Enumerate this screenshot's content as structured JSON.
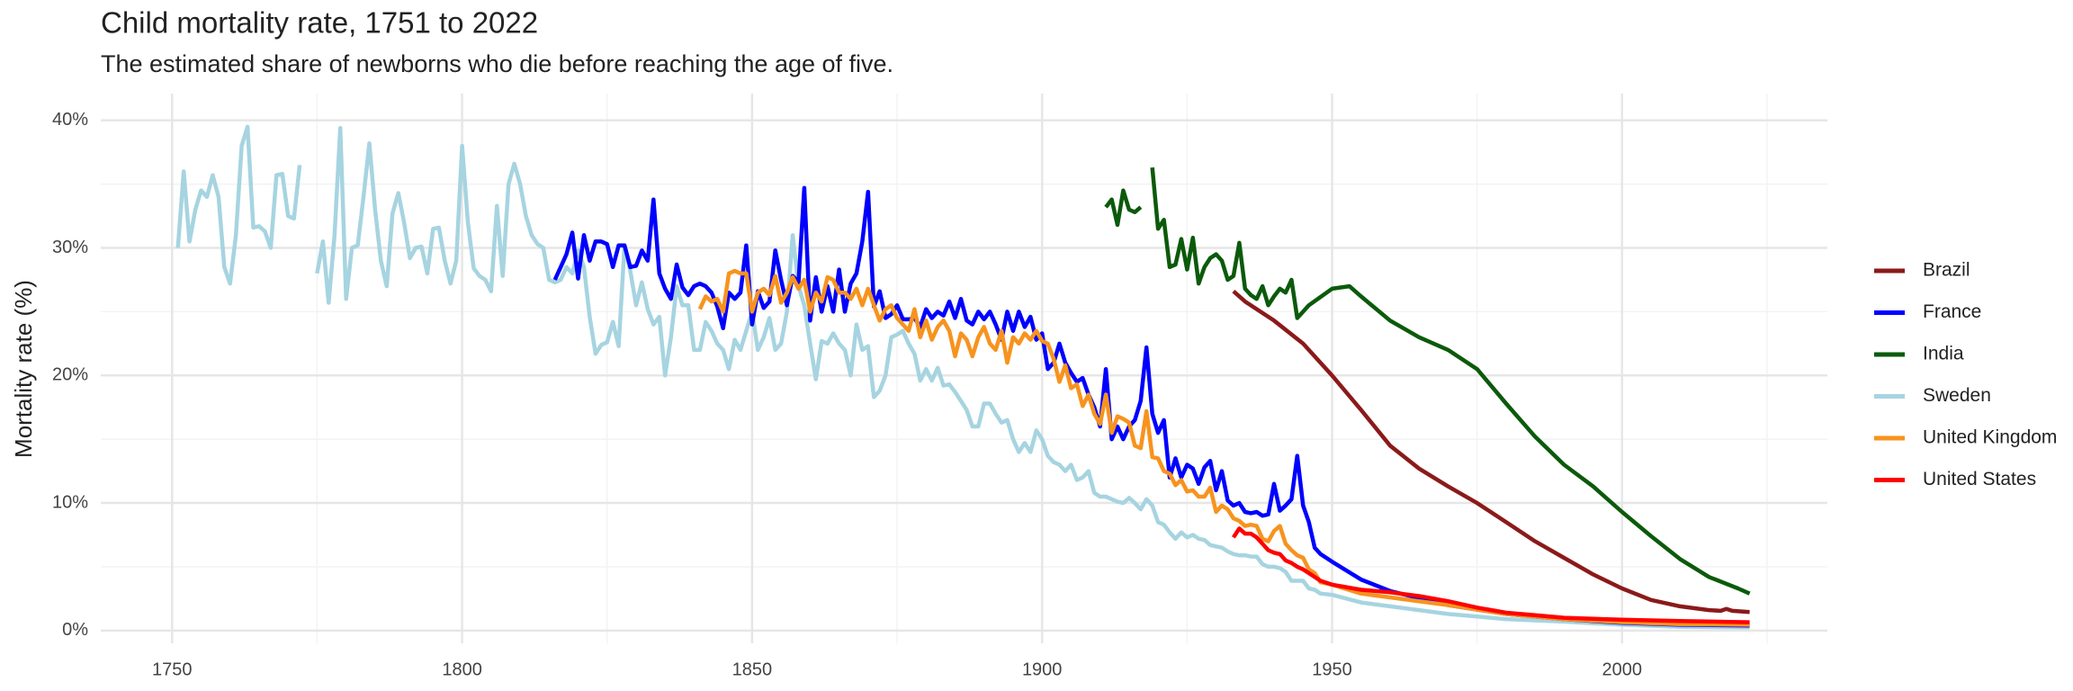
{
  "chart_data": {
    "type": "line",
    "title": "Child mortality rate, 1751 to 2022",
    "subtitle": "The estimated share of newborns who die before reaching the age of five.",
    "y_label": "Mortality rate (%)",
    "xlim": [
      1737.7,
      2035.4
    ],
    "ylim": [
      -1,
      42.1
    ],
    "xticks": [
      1750,
      1800,
      1850,
      1900,
      1950,
      2000
    ],
    "x_minor_ticks": [
      1775,
      1825,
      1875,
      1925,
      1975,
      2025
    ],
    "yticks": [
      {
        "value": 0,
        "label": "0%"
      },
      {
        "value": 10,
        "label": "10%"
      },
      {
        "value": 20,
        "label": "20%"
      },
      {
        "value": 30,
        "label": "30%"
      },
      {
        "value": 40,
        "label": "40%"
      }
    ],
    "y_minor_ticks": [
      5,
      15,
      25,
      35
    ],
    "grid": true,
    "legend": "right",
    "series": [
      {
        "name": "Brazil",
        "color": "#8b1a1a",
        "x": [
          1933,
          1935,
          1940,
          1945,
          1950,
          1955,
          1960,
          1965,
          1970,
          1975,
          1980,
          1985,
          1990,
          1995,
          2000,
          2005,
          2010,
          2015,
          2017,
          2018,
          2019,
          2022
        ],
        "values": [
          26.6,
          25.8,
          24.3,
          22.5,
          20,
          17.3,
          14.5,
          12.7,
          11.3,
          10,
          8.5,
          7,
          5.7,
          4.4,
          3.3,
          2.4,
          1.9,
          1.6,
          1.55,
          1.7,
          1.55,
          1.45
        ]
      },
      {
        "name": "France",
        "color": "#0000ff",
        "x": [
          1816,
          1817,
          1818,
          1819,
          1820,
          1821,
          1822,
          1823,
          1824,
          1825,
          1826,
          1827,
          1828,
          1829,
          1830,
          1831,
          1832,
          1833,
          1834,
          1835,
          1836,
          1837,
          1838,
          1839,
          1840,
          1841,
          1842,
          1843,
          1844,
          1845,
          1846,
          1847,
          1848,
          1849,
          1850,
          1851,
          1852,
          1853,
          1854,
          1855,
          1856,
          1857,
          1858,
          1859,
          1860,
          1861,
          1862,
          1863,
          1864,
          1865,
          1866,
          1867,
          1868,
          1869,
          1870,
          1871,
          1872,
          1873,
          1874,
          1875,
          1876,
          1877,
          1878,
          1879,
          1880,
          1881,
          1882,
          1883,
          1884,
          1885,
          1886,
          1887,
          1888,
          1889,
          1890,
          1891,
          1892,
          1893,
          1894,
          1895,
          1896,
          1897,
          1898,
          1899,
          1900,
          1901,
          1902,
          1903,
          1904,
          1905,
          1906,
          1907,
          1908,
          1909,
          1910,
          1911,
          1912,
          1913,
          1914,
          1915,
          1916,
          1917,
          1918,
          1919,
          1920,
          1921,
          1922,
          1923,
          1924,
          1925,
          1926,
          1927,
          1928,
          1929,
          1930,
          1931,
          1932,
          1933,
          1934,
          1935,
          1936,
          1937,
          1938,
          1939,
          1940,
          1941,
          1942,
          1943,
          1944,
          1945,
          1946,
          1947,
          1948,
          1950,
          1955,
          1960,
          1970,
          1980,
          1990,
          2000,
          2010,
          2022
        ],
        "values": [
          27.5,
          28.5,
          29.5,
          31.2,
          27.6,
          31,
          29,
          30.5,
          30.5,
          30.3,
          28.5,
          30.2,
          30.2,
          28.5,
          28.6,
          29.8,
          29,
          33.8,
          28,
          26.8,
          26,
          28.7,
          26.9,
          26.3,
          27,
          27.2,
          27,
          26.5,
          25.4,
          23.7,
          26.5,
          26,
          26.5,
          30.2,
          24,
          26.6,
          25.3,
          25.8,
          29.8,
          27.5,
          25.5,
          27.8,
          27.3,
          34.7,
          24.3,
          27.7,
          25,
          27,
          25,
          28.3,
          25,
          27.2,
          28,
          30.5,
          34.4,
          25.4,
          26.6,
          24.5,
          24.8,
          25.5,
          24.4,
          24.4,
          24.5,
          23.8,
          25.2,
          24.5,
          25,
          24.7,
          25.8,
          24.5,
          26,
          24.3,
          24,
          25,
          24.4,
          25,
          24,
          22.8,
          25,
          23.5,
          25,
          23.8,
          24.6,
          22.8,
          23.3,
          20.5,
          21,
          22.5,
          21,
          20.2,
          19.5,
          19.8,
          18.5,
          17.5,
          16,
          20.5,
          15,
          16,
          15,
          16,
          16.5,
          18,
          22.2,
          17,
          15.5,
          16.5,
          12,
          13.5,
          12,
          13,
          12.7,
          11.5,
          12.8,
          13.3,
          11,
          12.5,
          10.2,
          9.8,
          10,
          9.3,
          9.2,
          9.3,
          9,
          9.1,
          11.5,
          9.4,
          9.8,
          10.3,
          13.7,
          9.8,
          8.5,
          6.5,
          6,
          5.4,
          4,
          3.1,
          2,
          1.3,
          0.9,
          0.6,
          0.45,
          0.4
        ]
      },
      {
        "name": "India",
        "color": "#0b5a0b",
        "x": [
          1911,
          1912,
          1913,
          1914,
          1915,
          1916,
          1917,
          1918,
          1919,
          1920,
          1921,
          1922,
          1923,
          1924,
          1925,
          1926,
          1927,
          1928,
          1929,
          1930,
          1931,
          1932,
          1933,
          1934,
          1935,
          1936,
          1937,
          1938,
          1939,
          1940,
          1941,
          1942,
          1943,
          1944,
          1945,
          1946,
          1950,
          1953,
          1955,
          1960,
          1965,
          1970,
          1975,
          1980,
          1985,
          1990,
          1995,
          2000,
          2005,
          2010,
          2015,
          2020,
          2022
        ],
        "values": [
          33.2,
          33.8,
          31.8,
          34.5,
          33,
          32.8,
          33.2,
          null,
          36.3,
          31.5,
          32.2,
          28.5,
          28.7,
          30.7,
          28.3,
          30.8,
          27.2,
          28.5,
          29.2,
          29.5,
          29,
          27.5,
          27.8,
          30.4,
          26.8,
          26.3,
          26,
          27,
          25.5,
          26.2,
          26.8,
          26.5,
          27.5,
          24.5,
          25,
          25.5,
          26.8,
          27,
          26.2,
          24.3,
          23,
          22,
          20.5,
          17.8,
          15.2,
          13,
          11.3,
          9.3,
          7.4,
          5.6,
          4.2,
          3.3,
          2.9
        ]
      },
      {
        "name": "Sweden",
        "color": "#a6d4e0",
        "x": [
          1751,
          1752,
          1753,
          1754,
          1755,
          1756,
          1757,
          1758,
          1759,
          1760,
          1761,
          1762,
          1763,
          1764,
          1765,
          1766,
          1767,
          1768,
          1769,
          1770,
          1771,
          1772,
          1773,
          1775,
          1776,
          1777,
          1778,
          1779,
          1780,
          1781,
          1782,
          1783,
          1784,
          1785,
          1786,
          1787,
          1788,
          1789,
          1790,
          1791,
          1792,
          1793,
          1794,
          1795,
          1796,
          1797,
          1798,
          1799,
          1800,
          1801,
          1802,
          1803,
          1804,
          1805,
          1806,
          1807,
          1808,
          1809,
          1810,
          1811,
          1812,
          1813,
          1814,
          1815,
          1816,
          1817,
          1818,
          1819,
          1820,
          1821,
          1822,
          1823,
          1824,
          1825,
          1826,
          1827,
          1828,
          1829,
          1830,
          1831,
          1832,
          1833,
          1834,
          1835,
          1836,
          1837,
          1838,
          1839,
          1840,
          1841,
          1842,
          1843,
          1844,
          1845,
          1846,
          1847,
          1848,
          1849,
          1850,
          1851,
          1852,
          1853,
          1854,
          1855,
          1856,
          1857,
          1858,
          1859,
          1860,
          1861,
          1862,
          1863,
          1864,
          1865,
          1866,
          1867,
          1868,
          1869,
          1870,
          1871,
          1872,
          1873,
          1874,
          1875,
          1876,
          1877,
          1878,
          1879,
          1880,
          1881,
          1882,
          1883,
          1884,
          1885,
          1886,
          1887,
          1888,
          1889,
          1890,
          1891,
          1892,
          1893,
          1894,
          1895,
          1896,
          1897,
          1898,
          1899,
          1900,
          1901,
          1902,
          1903,
          1904,
          1905,
          1906,
          1907,
          1908,
          1909,
          1910,
          1911,
          1912,
          1913,
          1914,
          1915,
          1916,
          1917,
          1918,
          1919,
          1920,
          1921,
          1922,
          1923,
          1924,
          1925,
          1926,
          1927,
          1928,
          1929,
          1930,
          1931,
          1932,
          1933,
          1934,
          1935,
          1936,
          1937,
          1938,
          1939,
          1940,
          1941,
          1942,
          1943,
          1944,
          1945,
          1946,
          1947,
          1948,
          1950,
          1955,
          1960,
          1970,
          1980,
          1990,
          2000,
          2010,
          2022
        ],
        "values": [
          30,
          36,
          30.5,
          33,
          34.5,
          34,
          35.7,
          34,
          28.5,
          27.2,
          31,
          38,
          39.5,
          31.6,
          31.7,
          31.3,
          30,
          35.7,
          35.8,
          32.5,
          32.3,
          36.5,
          null,
          28,
          30.5,
          25.7,
          31,
          39.4,
          26,
          30,
          30.2,
          34,
          38.2,
          33,
          29,
          27,
          32.7,
          34.3,
          32,
          29.2,
          30,
          30.1,
          28,
          31.5,
          31.6,
          29,
          27.2,
          29,
          38,
          32,
          28.4,
          27.8,
          27.5,
          26.6,
          33.3,
          27.8,
          35,
          36.6,
          35,
          32.5,
          31,
          30.3,
          30,
          27.5,
          27.3,
          27.5,
          28.5,
          28,
          29.8,
          28.5,
          24.6,
          21.7,
          22.4,
          22.6,
          24.2,
          22.3,
          30.2,
          28.2,
          25.5,
          27.3,
          25.2,
          24,
          24.6,
          20,
          23,
          27,
          25.5,
          25.5,
          22,
          22,
          24.2,
          23.5,
          22.5,
          22,
          20.5,
          22.8,
          22,
          23.5,
          25,
          22,
          23,
          24.5,
          22,
          22.5,
          25,
          31,
          27,
          25.5,
          22.5,
          19.7,
          22.7,
          22.5,
          23.3,
          22.5,
          22,
          20,
          24,
          22,
          22.3,
          18.3,
          18.8,
          20,
          23,
          23.2,
          23.5,
          22.5,
          21.7,
          19.6,
          20.5,
          19.6,
          20.6,
          19.2,
          19.3,
          18.7,
          18,
          17.3,
          16,
          16,
          17.8,
          17.8,
          17,
          16.3,
          16.5,
          15,
          14,
          14.7,
          14,
          15.7,
          15,
          13.7,
          13.2,
          13,
          12.5,
          13,
          11.8,
          12,
          12.5,
          10.8,
          10.5,
          10.5,
          10.3,
          10.1,
          10,
          10.4,
          10,
          9.5,
          10.3,
          9.8,
          8.5,
          8.3,
          7.7,
          7.2,
          7.7,
          7.3,
          7.5,
          7.2,
          7.1,
          6.7,
          6.6,
          6.5,
          6.2,
          6,
          5.9,
          5.9,
          5.8,
          5.8,
          5.2,
          5,
          5,
          4.9,
          4.6,
          3.9,
          3.9,
          3.9,
          3.3,
          3.2,
          2.9,
          2.8,
          2.2,
          1.9,
          1.3,
          0.9,
          0.7,
          0.45,
          0.3,
          0.25
        ]
      },
      {
        "name": "United Kingdom",
        "color": "#f7931e",
        "x": [
          1841,
          1842,
          1843,
          1844,
          1845,
          1846,
          1847,
          1848,
          1849,
          1850,
          1851,
          1852,
          1853,
          1854,
          1855,
          1856,
          1857,
          1858,
          1859,
          1860,
          1861,
          1862,
          1863,
          1864,
          1865,
          1866,
          1867,
          1868,
          1869,
          1870,
          1871,
          1872,
          1873,
          1874,
          1875,
          1876,
          1877,
          1878,
          1879,
          1880,
          1881,
          1882,
          1883,
          1884,
          1885,
          1886,
          1887,
          1888,
          1889,
          1890,
          1891,
          1892,
          1893,
          1894,
          1895,
          1896,
          1897,
          1898,
          1899,
          1900,
          1901,
          1902,
          1903,
          1904,
          1905,
          1906,
          1907,
          1908,
          1909,
          1910,
          1911,
          1912,
          1913,
          1914,
          1915,
          1916,
          1917,
          1918,
          1919,
          1920,
          1921,
          1922,
          1923,
          1924,
          1925,
          1926,
          1927,
          1928,
          1929,
          1930,
          1931,
          1932,
          1933,
          1934,
          1935,
          1936,
          1937,
          1938,
          1939,
          1940,
          1941,
          1942,
          1943,
          1944,
          1945,
          1946,
          1947,
          1948,
          1950,
          1955,
          1960,
          1970,
          1980,
          1990,
          2000,
          2010,
          2022
        ],
        "values": [
          25.2,
          26.2,
          25.8,
          26,
          25,
          28,
          28.2,
          28,
          28,
          25,
          26.5,
          26.8,
          26.3,
          27.8,
          25.7,
          26.5,
          27.7,
          26.8,
          27.5,
          25,
          26.5,
          25.8,
          27.7,
          27.5,
          26.5,
          26.5,
          26,
          26.8,
          25.5,
          26.8,
          25.5,
          24.3,
          25.2,
          25.5,
          24.5,
          24,
          23.5,
          25.2,
          23,
          24.3,
          22.8,
          23.8,
          24.3,
          23.5,
          21.5,
          23.3,
          22.8,
          21.5,
          23,
          23.8,
          22.5,
          22,
          23.5,
          21,
          23,
          22.5,
          23.3,
          22.8,
          23.5,
          22.7,
          22.5,
          21.3,
          19.5,
          20.8,
          19,
          19.3,
          17.6,
          18.5,
          17,
          16.2,
          18.5,
          15.5,
          16.8,
          16.6,
          16.3,
          14.5,
          14.3,
          17.2,
          13.6,
          13.5,
          12.5,
          12.3,
          11.4,
          11.8,
          10.9,
          11,
          10.5,
          10.5,
          11.2,
          9.3,
          9.8,
          9.5,
          8.8,
          8.6,
          8.2,
          8.3,
          8.2,
          7.2,
          7,
          7.8,
          8.2,
          6.8,
          6.3,
          5.9,
          5.7,
          4.8,
          4.5,
          3.8,
          3.6,
          2.9,
          2.6,
          2,
          1.3,
          0.9,
          0.65,
          0.5,
          0.45
        ]
      },
      {
        "name": "United States",
        "color": "#ff0000",
        "x": [
          1933,
          1934,
          1935,
          1936,
          1937,
          1938,
          1939,
          1940,
          1941,
          1942,
          1943,
          1944,
          1945,
          1946,
          1947,
          1948,
          1950,
          1955,
          1960,
          1965,
          1970,
          1975,
          1980,
          1985,
          1990,
          2000,
          2010,
          2022
        ],
        "values": [
          7.3,
          8,
          7.6,
          7.6,
          7.3,
          6.8,
          6.3,
          6.1,
          6,
          5.5,
          5.3,
          5,
          4.8,
          4.5,
          4.2,
          3.9,
          3.6,
          3.2,
          3,
          2.7,
          2.3,
          1.8,
          1.4,
          1.2,
          1,
          0.85,
          0.75,
          0.65
        ]
      }
    ]
  }
}
